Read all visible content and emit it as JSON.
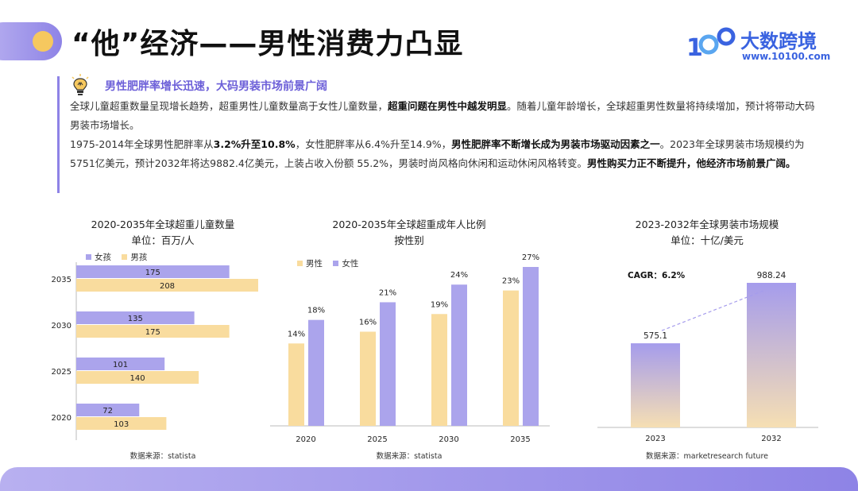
{
  "header": {
    "title": "“他”经济——男性消费力凸显",
    "logo_text": "大数跨境",
    "logo_url": "www.10100.com"
  },
  "insight": {
    "subheading": "男性肥胖率增长迅速，大码男装市场前景广阔",
    "p1_a": "全球儿童超重数量呈现增长趋势，超重男性儿童数量高于女性儿童数量，",
    "p1_b": "超重问题在男性中越发明显",
    "p1_c": "。随着儿童年龄增长，全球超重男性数量将持续增加，预计将带动大码男装市场增长。",
    "p2_a": "1975-2014年全球男性肥胖率从",
    "p2_b": "3.2%升至10.8%",
    "p2_c": "，女性肥胖率从6.4%升至14.9%，",
    "p2_d": "男性肥胖率不断增长成为男装市场驱动因素之一",
    "p2_e": "。2023年全球男装市场规模约为5751亿美元，预计2032年将达9882.4亿美元，上装占收入份额 55.2%，男装时尚风格向休闲和运动休闲风格转变。",
    "p2_f": "男性购买力正不断提升，他经济市场前景广阔。"
  },
  "colors": {
    "purple": "#aba4ec",
    "yellow": "#f9dc9e",
    "accent": "#8e83e6",
    "logo_blue": "#3a63e0"
  },
  "chart_data": [
    {
      "type": "bar",
      "orientation": "horizontal",
      "title": "2020-2035年全球超重儿童数量",
      "subtitle": "单位：百万/人",
      "categories": [
        "2035",
        "2030",
        "2025",
        "2020"
      ],
      "series": [
        {
          "name": "女孩",
          "values": [
            175,
            135,
            101,
            72
          ]
        },
        {
          "name": "男孩",
          "values": [
            208,
            175,
            140,
            103
          ]
        }
      ],
      "xlim": [
        0,
        208
      ],
      "source": "数据来源：statista"
    },
    {
      "type": "bar",
      "title": "2020-2035年全球超重成年人比例",
      "subtitle": "按性别",
      "categories": [
        "2020",
        "2025",
        "2030",
        "2035"
      ],
      "series": [
        {
          "name": "男性",
          "values": [
            14,
            16,
            19,
            23
          ]
        },
        {
          "name": "女性",
          "values": [
            18,
            21,
            24,
            27
          ]
        }
      ],
      "unit": "%",
      "ylim": [
        0,
        27
      ],
      "source": "数据来源：statista"
    },
    {
      "type": "bar",
      "title": "2023-2032年全球男装市场规模",
      "subtitle": "单位：十亿/美元",
      "categories": [
        "2023",
        "2032"
      ],
      "values": [
        575.1,
        988.24
      ],
      "annotation": "CAGR：6.2%",
      "ylim": [
        0,
        988.24
      ],
      "source": "数据来源：marketresearch future"
    }
  ]
}
